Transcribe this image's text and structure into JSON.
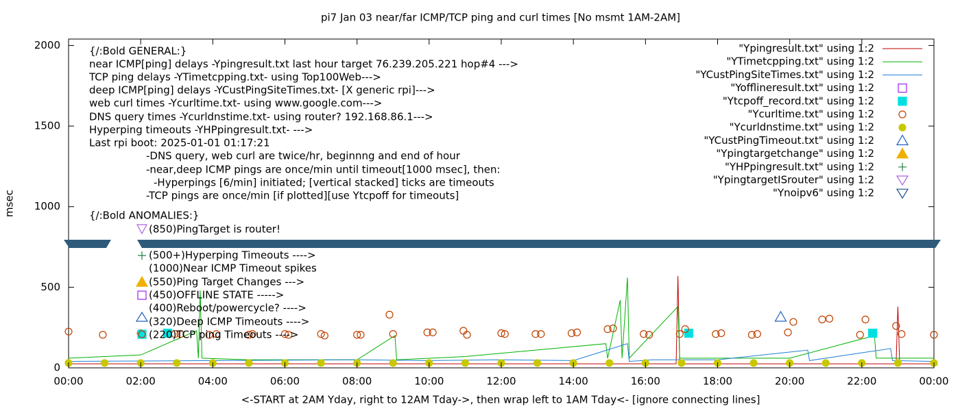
{
  "chart_data": {
    "type": "line",
    "title": "pi7 Jan 03  near/far ICMP/TCP ping and curl times [No msmt 1AM-2AM]",
    "xlabel": "<-START at 2AM Yday, right to 12AM Tday->, then wrap left to 1AM Tday<- [ignore connecting lines]",
    "ylabel": "msec",
    "xlim": [
      0,
      24
    ],
    "ylim": [
      0,
      2040
    ],
    "xticks": [
      {
        "value": 0,
        "label": "00:00"
      },
      {
        "value": 2,
        "label": "02:00"
      },
      {
        "value": 4,
        "label": "04:00"
      },
      {
        "value": 6,
        "label": "06:00"
      },
      {
        "value": 8,
        "label": "08:00"
      },
      {
        "value": 10,
        "label": "10:00"
      },
      {
        "value": 12,
        "label": "12:00"
      },
      {
        "value": 14,
        "label": "14:00"
      },
      {
        "value": 16,
        "label": "16:00"
      },
      {
        "value": 18,
        "label": "18:00"
      },
      {
        "value": 20,
        "label": "20:00"
      },
      {
        "value": 22,
        "label": "22:00"
      },
      {
        "value": 24,
        "label": "00:00"
      }
    ],
    "yticks": [
      0,
      500,
      1000,
      1500,
      2000
    ],
    "annotations": [
      "{/:Bold GENERAL:}",
      "near ICMP[ping] delays -Ypingresult.txt last hour target 76.239.205.221 hop#4 --->",
      "TCP ping delays -YTimetcpping.txt- using Top100Web--->",
      "deep ICMP[ping] delays -YCustPingSiteTimes.txt- [X generic rpi]--->",
      "web curl times -Ycurltime.txt- using www.google.com--->",
      "DNS query times -Ycurldnstime.txt- using router? 192.168.86.1--->",
      "Hyperping timeouts -YHPpingresult.txt- --->",
      "Last rpi boot: 2025-01-01 01:17:21",
      "-DNS query, web curl are twice/hr, beginnng and end of hour",
      "-near,deep ICMP pings are once/min until timeout[1000 msec], then:",
      "-Hyperpings [6/min] initiated; [vertical stacked] ticks are timeouts",
      "-TCP pings are once/min [if plotted][use Ytcpoff for timeouts]",
      "{/:Bold ANOMALIES:}",
      "(850)PingTarget is router!",
      "(500+)Hyperping Timeouts ---->",
      "(1000)Near ICMP Timeout spikes",
      "(550)Ping Target Changes --->",
      "(450)OFFLINE STATE ----->",
      "(400)Reboot/powercycle? ---->",
      "(320)Deep ICMP Timeouts ---->",
      "(220)TCP ping Timeouts ---->"
    ],
    "series": [
      {
        "name": "\"Ypingresult.txt\" using 1:2",
        "color": "#c00000",
        "marker": "line",
        "x": [
          0,
          2,
          4,
          6,
          8,
          10,
          12,
          14,
          16,
          16.85,
          16.9,
          16.95,
          18,
          20,
          22,
          22.95,
          23,
          23.05,
          24
        ],
        "values": [
          25,
          25,
          25,
          25,
          25,
          25,
          25,
          25,
          25,
          25,
          570,
          25,
          25,
          25,
          25,
          25,
          380,
          25,
          25
        ]
      },
      {
        "name": "\"YTimetcpping.txt\" using 1:2",
        "color": "#00b000",
        "marker": "line",
        "x": [
          0,
          2,
          3.55,
          3.6,
          3.65,
          3.7,
          5,
          8,
          9.05,
          9.1,
          11,
          14.9,
          14.95,
          15.3,
          15.35,
          15.5,
          15.55,
          16.9,
          16.95,
          20,
          22.35,
          22.4,
          24
        ],
        "values": [
          60,
          80,
          230,
          60,
          480,
          60,
          50,
          50,
          200,
          50,
          70,
          150,
          60,
          420,
          60,
          560,
          60,
          380,
          60,
          60,
          200,
          60,
          60
        ]
      },
      {
        "name": "\"YCustPingSiteTimes.txt\" using 1:2",
        "color": "#1e7fd5",
        "marker": "line",
        "x": [
          0,
          4,
          8,
          10,
          12,
          14,
          15.5,
          15.55,
          16.2,
          18,
          20.5,
          20.55,
          22.8,
          22.85,
          24
        ],
        "values": [
          40,
          45,
          50,
          45,
          50,
          45,
          150,
          40,
          50,
          50,
          110,
          45,
          120,
          45,
          40
        ]
      },
      {
        "name": "\"Yofflineresult.txt\" using 1:2",
        "color": "#a020f0",
        "marker": "square-open",
        "x": [],
        "values": []
      },
      {
        "name": "\"Ytcpoff_record.txt\" using 1:2",
        "color": "#00e0e0",
        "marker": "square",
        "x": [
          2.75,
          17.2,
          22.3
        ],
        "values": [
          215,
          215,
          215
        ]
      },
      {
        "name": "\"Ycurltime.txt\" using 1:2",
        "color": "#c04000",
        "marker": "circle-open",
        "x": [
          0,
          0.95,
          2,
          2.95,
          3.1,
          3.9,
          4.1,
          5,
          5.1,
          6,
          6.1,
          7,
          7.1,
          8,
          8.1,
          8.9,
          9,
          9.95,
          10.1,
          10.95,
          11.05,
          12,
          12.1,
          12.95,
          13.1,
          13.95,
          14.1,
          14.95,
          15.1,
          15.95,
          16.1,
          16.95,
          17.1,
          17.95,
          18.1,
          18.95,
          19.1,
          19.95,
          20.1,
          20.9,
          21.1,
          21.95,
          22.1,
          22.95,
          23.1,
          24
        ],
        "values": [
          225,
          205,
          215,
          210,
          210,
          205,
          210,
          205,
          210,
          210,
          205,
          210,
          200,
          205,
          205,
          330,
          210,
          220,
          220,
          230,
          205,
          215,
          210,
          210,
          210,
          215,
          220,
          240,
          245,
          210,
          205,
          210,
          240,
          210,
          215,
          205,
          210,
          220,
          285,
          300,
          305,
          205,
          300,
          260,
          210,
          205
        ]
      },
      {
        "name": "\"Ycurldnstime.txt\" using 1:2",
        "color": "#c8c800",
        "marker": "circle",
        "x": [
          0,
          1,
          2,
          3,
          4,
          5,
          6,
          7,
          8,
          9,
          10,
          11,
          12,
          13,
          14,
          15,
          16,
          17,
          18,
          19,
          20,
          21,
          22,
          23,
          24
        ],
        "values": [
          30,
          30,
          30,
          30,
          30,
          30,
          30,
          30,
          30,
          30,
          30,
          30,
          30,
          30,
          30,
          30,
          30,
          30,
          30,
          30,
          30,
          30,
          30,
          30,
          30
        ]
      },
      {
        "name": "\"YCustPingTimeout.txt\" using 1:2",
        "color": "#2060c0",
        "marker": "triangle-open",
        "x": [
          19.75
        ],
        "values": [
          315
        ]
      },
      {
        "name": "\"Ypingtargetchange\" using 1:2",
        "color": "#f0b000",
        "marker": "triangle",
        "x": [],
        "values": []
      },
      {
        "name": "\"YHPpingresult.txt\" using 1:2",
        "color": "#208040",
        "marker": "plus",
        "x": [],
        "values": []
      },
      {
        "name": "\"YpingtargetISrouter\" using 1:2",
        "color": "#b060e0",
        "marker": "triangle-down-open",
        "x": [],
        "values": []
      },
      {
        "name": "\"Ynoipv6\" using 1:2",
        "color": "#1a4f8a",
        "marker": "triangle-down-open",
        "x": [],
        "values": []
      }
    ]
  }
}
